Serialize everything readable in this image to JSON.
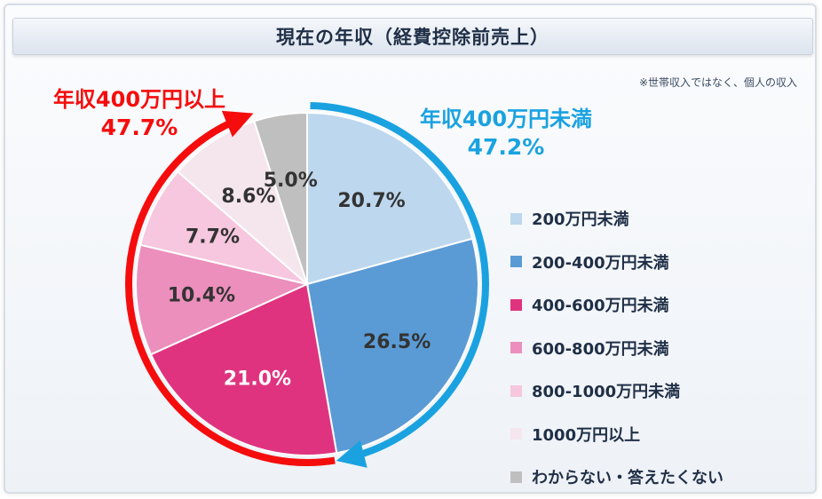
{
  "title": "現在の年収（経費控除前売上）",
  "note": "※世帯収入ではなく、個人の収入",
  "colors": {
    "upper_group": "#f50d0d",
    "lower_group": "#1aa2e0"
  },
  "groups": {
    "upper": {
      "name": "年収400万円以上",
      "percent": "47.7%"
    },
    "lower": {
      "name": "年収400万円未満",
      "percent": "47.2%"
    }
  },
  "chart_data": {
    "type": "pie",
    "title": "現在の年収（経費控除前売上）",
    "start_angle_deg": 0,
    "direction": "clockwise",
    "slices": [
      {
        "label": "200万円未満",
        "value": 20.7,
        "display": "20.7%",
        "color": "#bdd7ee",
        "label_color": "#333333"
      },
      {
        "label": "200-400万円未満",
        "value": 26.5,
        "display": "26.5%",
        "color": "#5b9bd5",
        "label_color": "#333333"
      },
      {
        "label": "400-600万円未満",
        "value": 21.0,
        "display": "21.0%",
        "color": "#e0337f",
        "label_color": "#ffffff"
      },
      {
        "label": "600-800万円未満",
        "value": 10.4,
        "display": "10.4%",
        "color": "#ec8fbd",
        "label_color": "#333333"
      },
      {
        "label": "800-1000万円未満",
        "value": 7.7,
        "display": "7.7%",
        "color": "#f6c7de",
        "label_color": "#333333"
      },
      {
        "label": "1000万円以上",
        "value": 8.6,
        "display": "8.6%",
        "color": "#f5e6ee",
        "label_color": "#333333"
      },
      {
        "label": "わからない・答えたくない",
        "value": 5.0,
        "display": "5.0%",
        "color": "#bfbfbf",
        "label_color": "#333333"
      }
    ],
    "legend_position": "right"
  }
}
